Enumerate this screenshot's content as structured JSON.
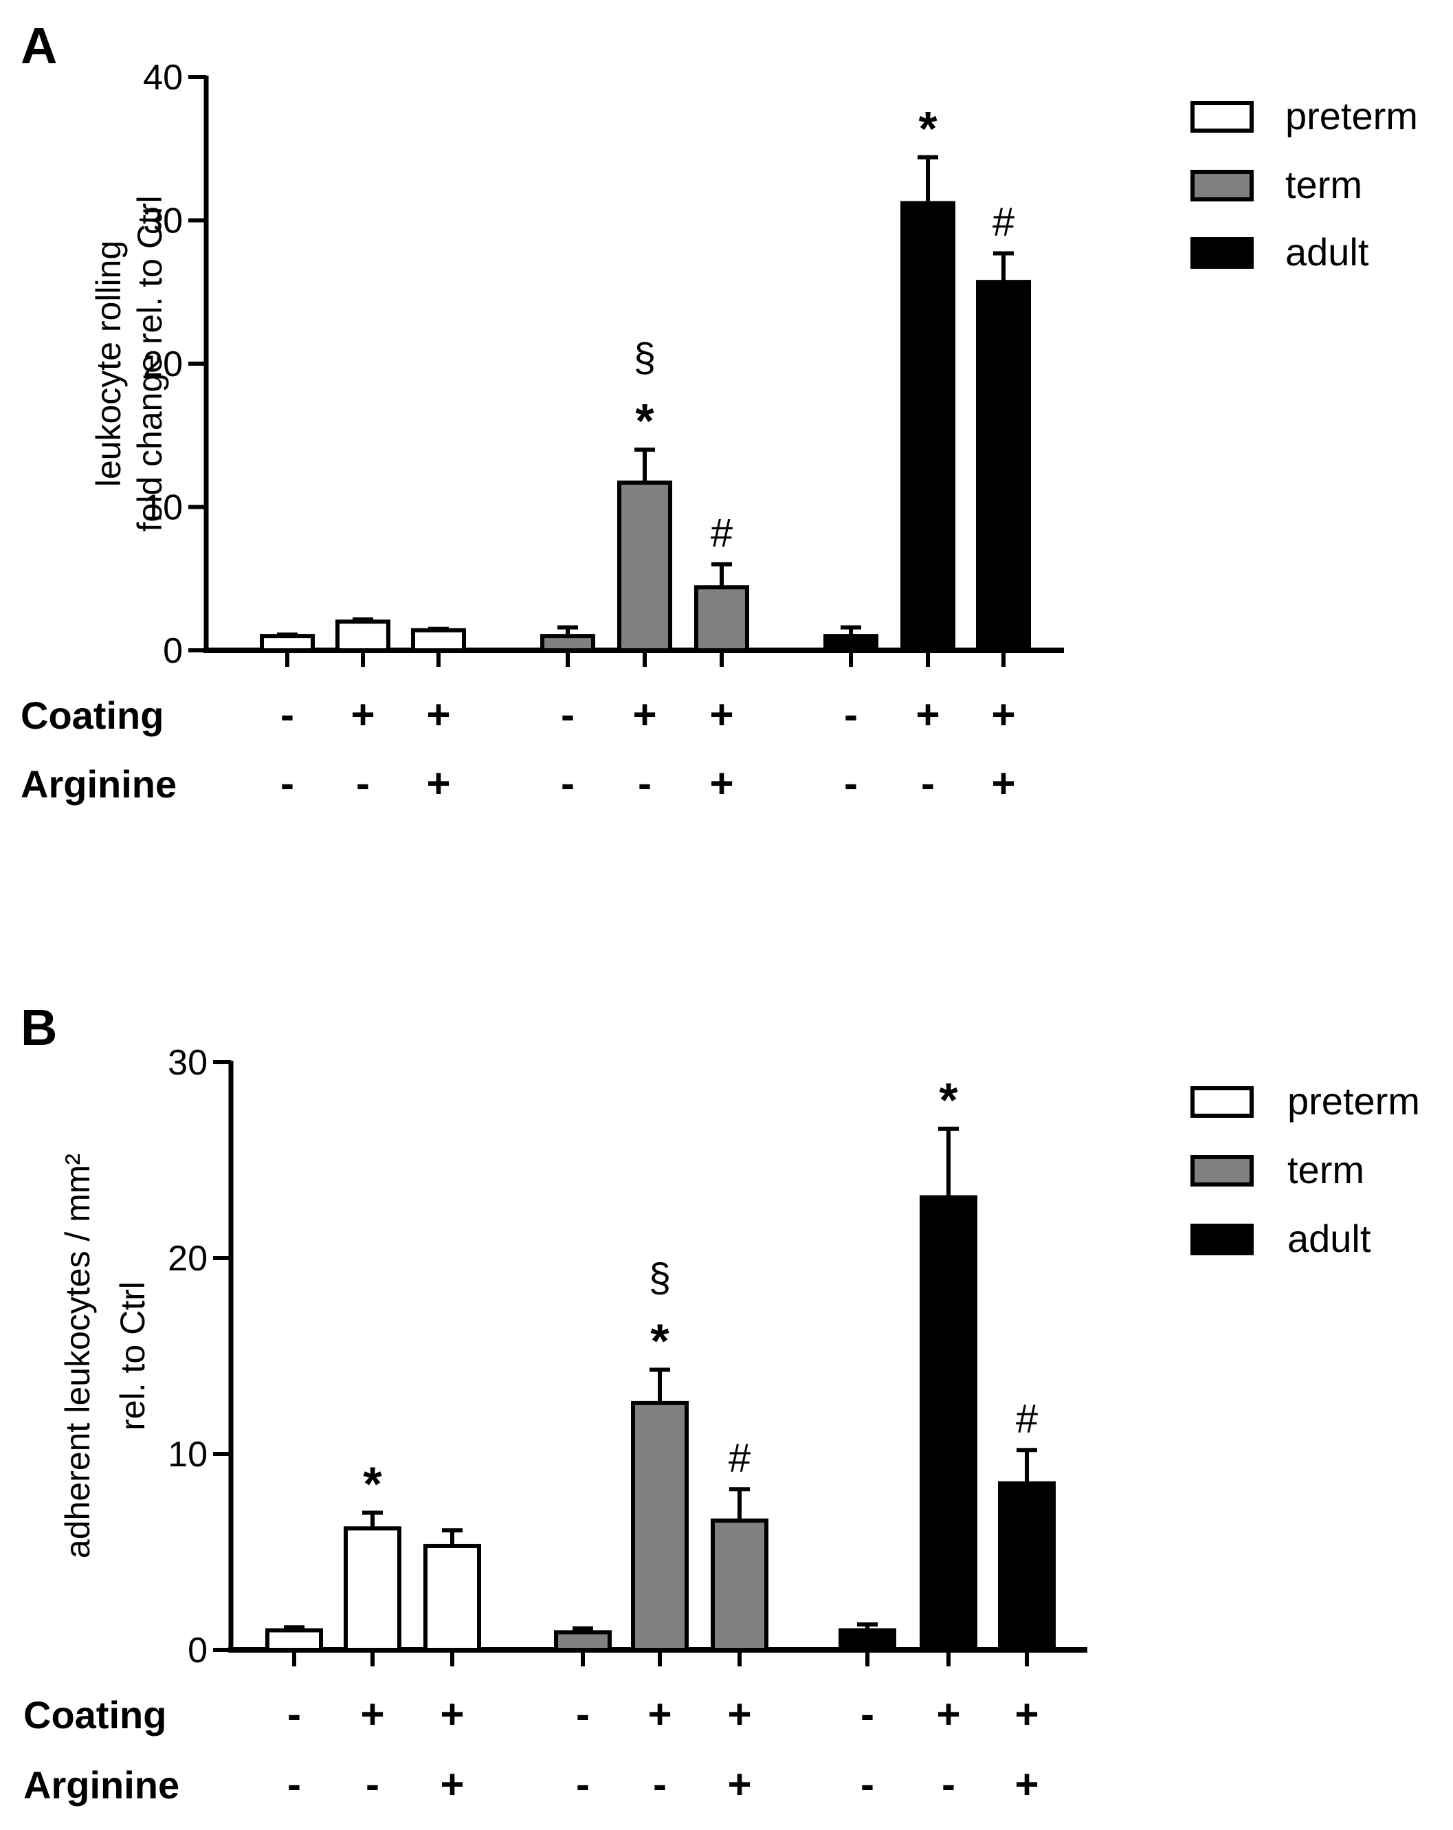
{
  "chart_data": [
    {
      "panel": "A",
      "type": "bar",
      "ylabel_lines": [
        "leukocyte rolling",
        "fold change rel. to Ctrl"
      ],
      "ylim": [
        0,
        40
      ],
      "yticks": [
        "0",
        "10",
        "20",
        "30",
        "40"
      ],
      "row_labels": [
        "Coating",
        "Arginine"
      ],
      "legend": [
        "preterm",
        "term",
        "adult"
      ],
      "groups": [
        {
          "series": "preterm",
          "color": "#ffffff",
          "bars": [
            {
              "value": 1.0,
              "error": 0.1,
              "coating": "-",
              "arginine": "-",
              "annotations": []
            },
            {
              "value": 2.0,
              "error": 0.15,
              "coating": "+",
              "arginine": "-",
              "annotations": []
            },
            {
              "value": 1.4,
              "error": 0.1,
              "coating": "+",
              "arginine": "+",
              "annotations": []
            }
          ]
        },
        {
          "series": "term",
          "color": "#808080",
          "bars": [
            {
              "value": 1.0,
              "error": 0.6,
              "coating": "-",
              "arginine": "-",
              "annotations": []
            },
            {
              "value": 11.7,
              "error": 2.3,
              "coating": "+",
              "arginine": "-",
              "annotations": [
                "*",
                "§"
              ]
            },
            {
              "value": 4.4,
              "error": 1.6,
              "coating": "+",
              "arginine": "+",
              "annotations": [
                "#"
              ]
            }
          ]
        },
        {
          "series": "adult",
          "color": "#000000",
          "bars": [
            {
              "value": 1.0,
              "error": 0.6,
              "coating": "-",
              "arginine": "-",
              "annotations": []
            },
            {
              "value": 31.2,
              "error": 3.2,
              "coating": "+",
              "arginine": "-",
              "annotations": [
                "*"
              ]
            },
            {
              "value": 25.7,
              "error": 2.0,
              "coating": "+",
              "arginine": "+",
              "annotations": [
                "#"
              ]
            }
          ]
        }
      ]
    },
    {
      "panel": "B",
      "type": "bar",
      "ylabel_lines": [
        "adherent leukocytes / mm²",
        "rel. to Ctrl"
      ],
      "ylim": [
        0,
        30
      ],
      "yticks": [
        "0",
        "10",
        "20",
        "30"
      ],
      "row_labels": [
        "Coating",
        "Arginine"
      ],
      "legend": [
        "preterm",
        "term",
        "adult"
      ],
      "groups": [
        {
          "series": "preterm",
          "color": "#ffffff",
          "bars": [
            {
              "value": 1.0,
              "error": 0.15,
              "coating": "-",
              "arginine": "-",
              "annotations": []
            },
            {
              "value": 6.2,
              "error": 0.8,
              "coating": "+",
              "arginine": "-",
              "annotations": [
                "*"
              ]
            },
            {
              "value": 5.3,
              "error": 0.8,
              "coating": "+",
              "arginine": "+",
              "annotations": []
            }
          ]
        },
        {
          "series": "term",
          "color": "#808080",
          "bars": [
            {
              "value": 0.9,
              "error": 0.2,
              "coating": "-",
              "arginine": "-",
              "annotations": []
            },
            {
              "value": 12.6,
              "error": 1.7,
              "coating": "+",
              "arginine": "-",
              "annotations": [
                "*",
                "§"
              ]
            },
            {
              "value": 6.6,
              "error": 1.6,
              "coating": "+",
              "arginine": "+",
              "annotations": [
                "#"
              ]
            }
          ]
        },
        {
          "series": "adult",
          "color": "#000000",
          "bars": [
            {
              "value": 1.0,
              "error": 0.3,
              "coating": "-",
              "arginine": "-",
              "annotations": []
            },
            {
              "value": 23.1,
              "error": 3.5,
              "coating": "+",
              "arginine": "-",
              "annotations": [
                "*"
              ]
            },
            {
              "value": 8.5,
              "error": 1.7,
              "coating": "+",
              "arginine": "+",
              "annotations": [
                "#"
              ]
            }
          ]
        }
      ]
    }
  ]
}
